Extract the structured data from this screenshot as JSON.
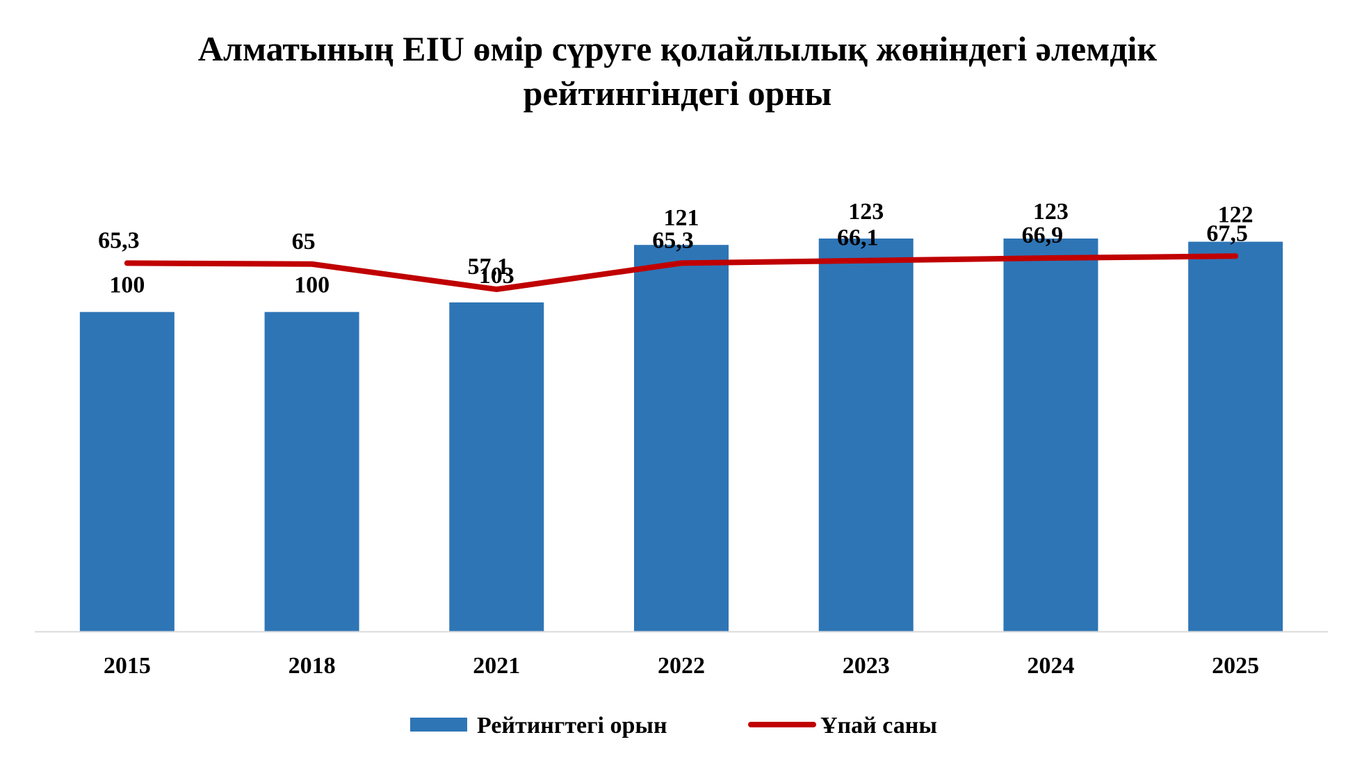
{
  "colors": {
    "bar": "#2e75b6",
    "line": "#c00000",
    "axis": "#d9d9d9",
    "text": "#000000",
    "background": "#ffffff"
  },
  "chart_data": {
    "type": "bar",
    "title_lines": [
      "Алматының EIU өмір сүруге қолайлылық жөніндегі әлемдік",
      "рейтингіндегі орны"
    ],
    "xlabel": "",
    "ylabel": "",
    "categories": [
      "2015",
      "2018",
      "2021",
      "2022",
      "2023",
      "2024",
      "2025"
    ],
    "series": [
      {
        "name": "Рейтингтегі орын",
        "type": "bar",
        "values": [
          100,
          100,
          103,
          121,
          123,
          123,
          122
        ],
        "labels": [
          "100",
          "100",
          "103",
          "121",
          "123",
          "123",
          "122"
        ]
      },
      {
        "name": "Ұпай саны",
        "type": "line",
        "values": [
          65.3,
          65,
          57.1,
          65.3,
          66.1,
          66.9,
          67.5
        ],
        "labels": [
          "65,3",
          "65",
          "57,1",
          "65,3",
          "66,1",
          "66,9",
          "67,5"
        ]
      }
    ],
    "bar_axis_range": [
      0,
      150
    ],
    "line_axis_range": [
      -50,
      100
    ],
    "grid": false,
    "legend": "bottom"
  }
}
